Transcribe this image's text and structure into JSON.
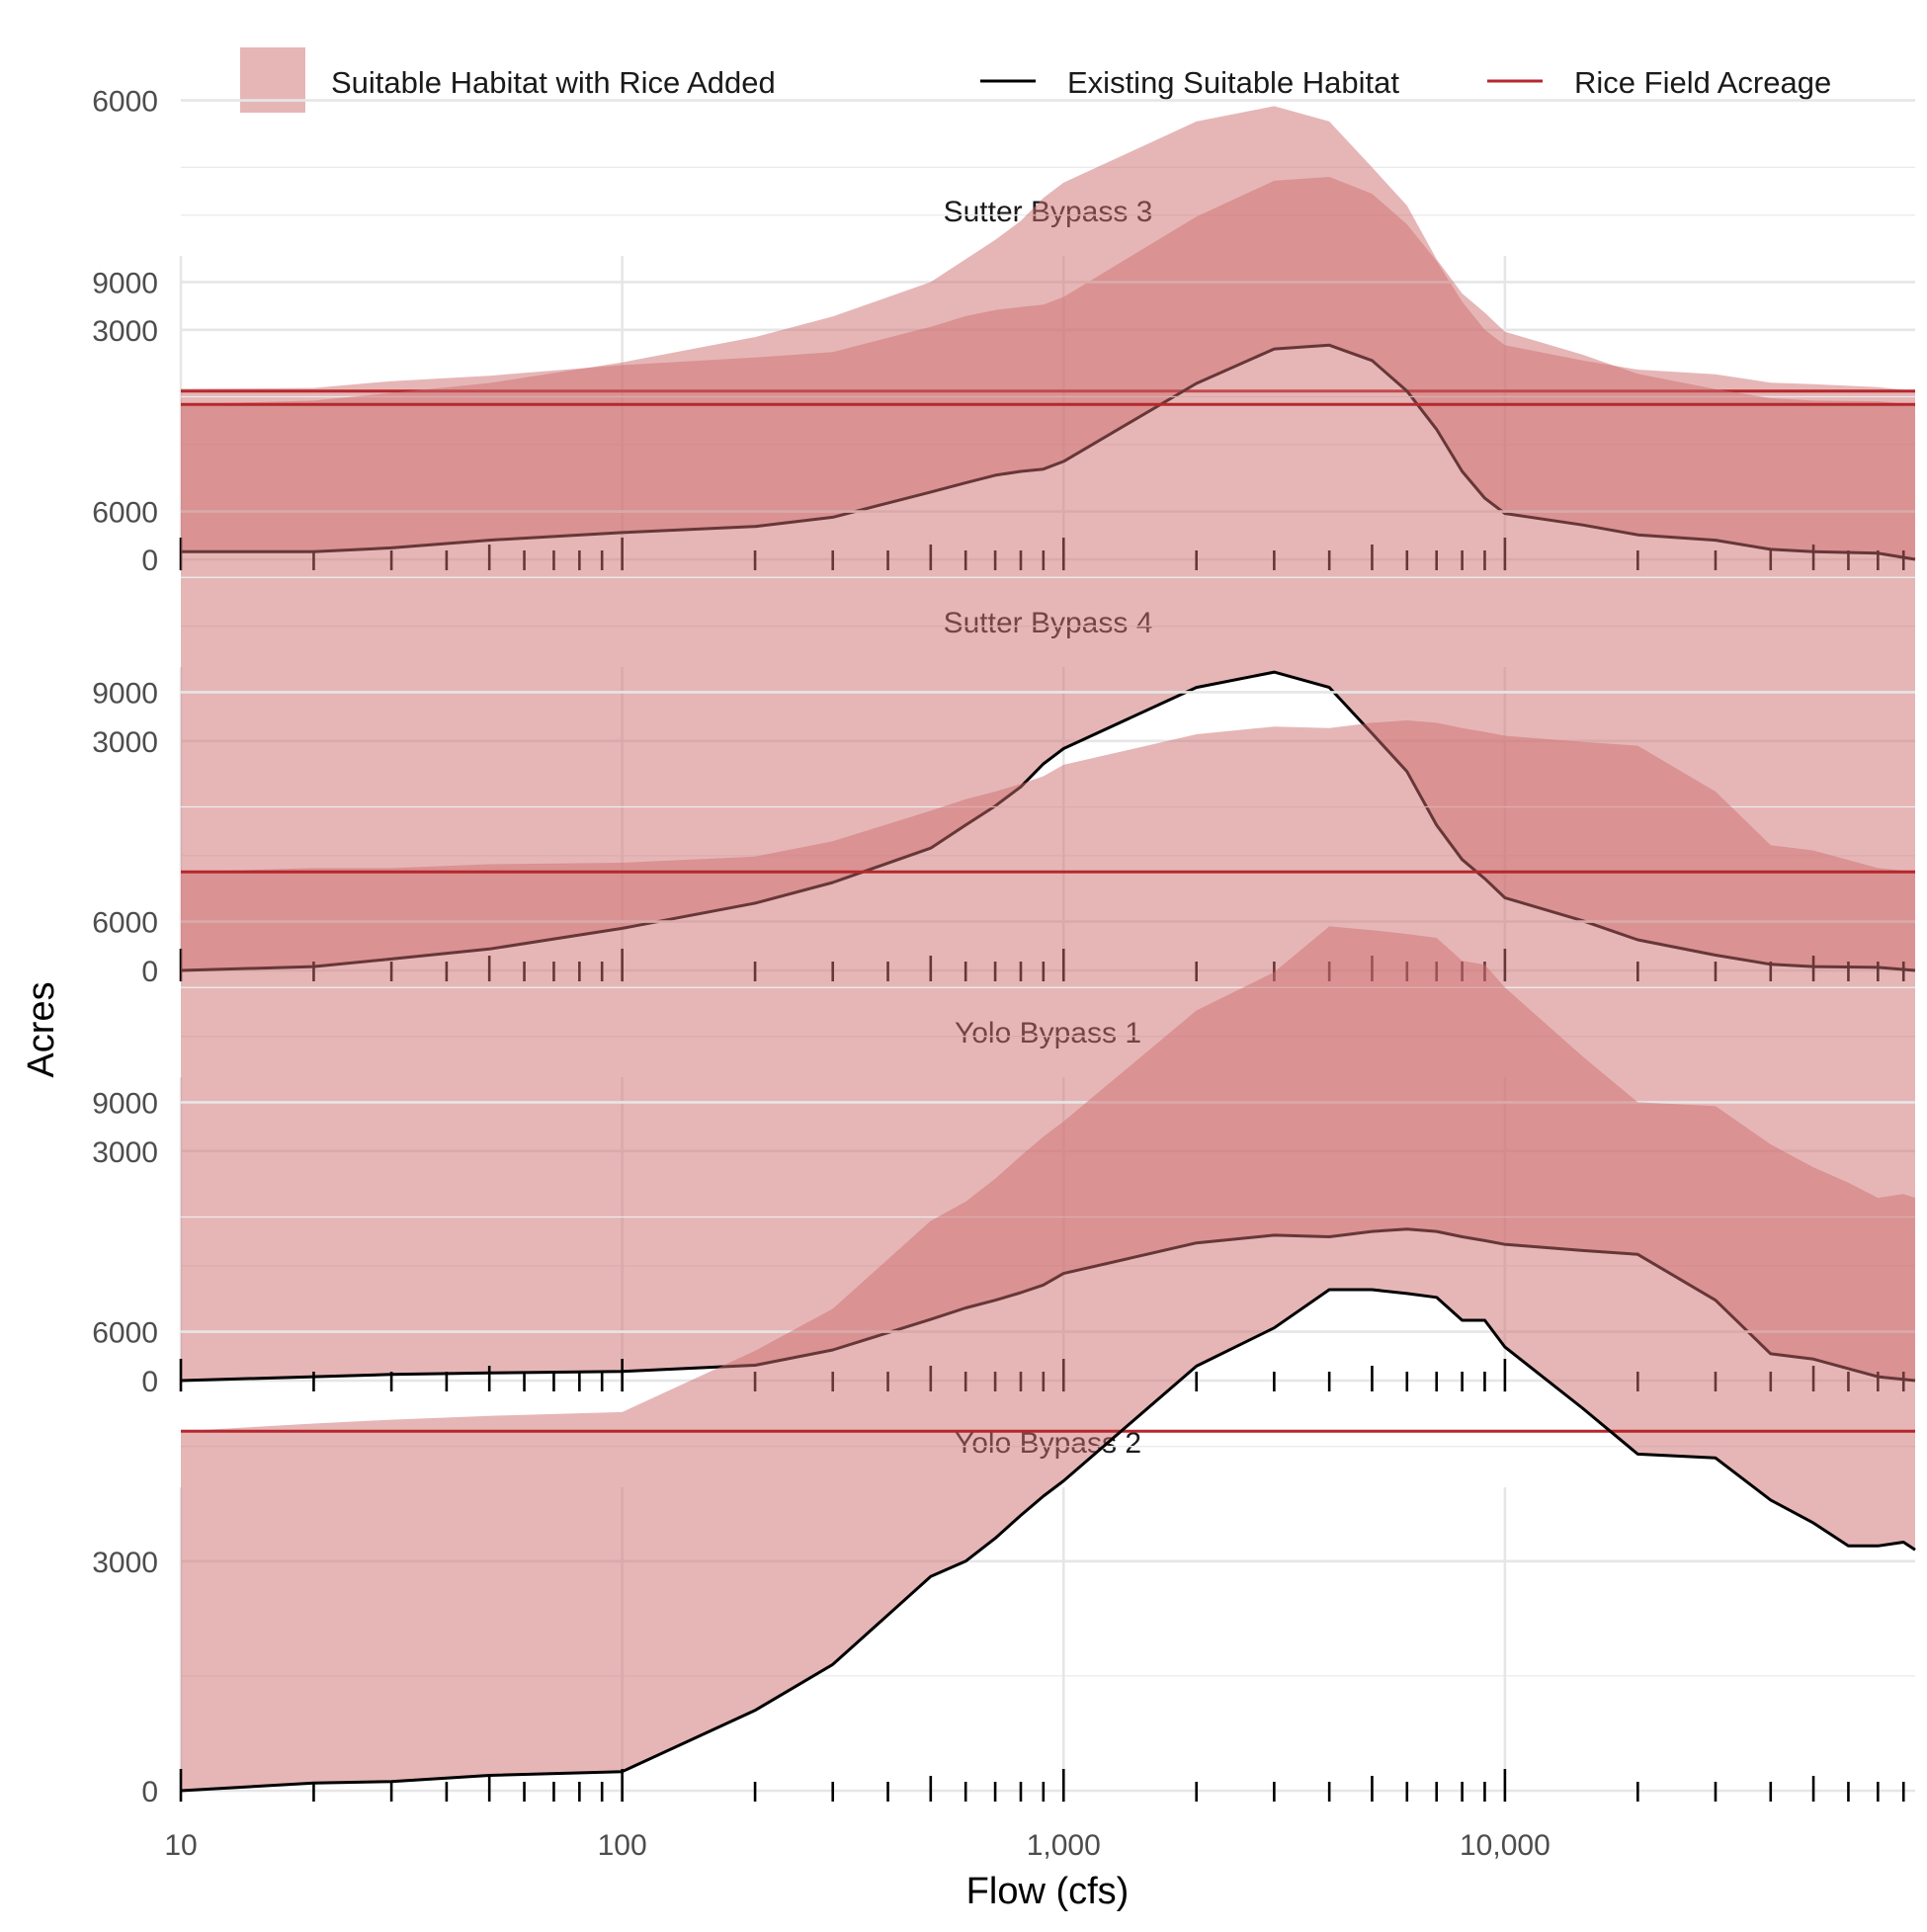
{
  "legend": {
    "items": [
      {
        "label": "Suitable Habitat with Rice Added",
        "kind": "area",
        "color": "#cd6e70"
      },
      {
        "label": "Existing Suitable Habitat",
        "kind": "line",
        "color": "#000000"
      },
      {
        "label": "Rice Field Acreage",
        "kind": "line",
        "color": "#b5282d"
      }
    ]
  },
  "axes": {
    "xlabel": "Flow (cfs)",
    "ylabel": "Acres"
  },
  "chart_data": {
    "type": "area",
    "x_scale": "log10",
    "xlim": [
      10,
      85000
    ],
    "ylim": [
      0,
      11500
    ],
    "x_ticks": [
      10,
      100,
      1000,
      10000
    ],
    "x_tick_labels": [
      "10",
      "100",
      "1,000",
      "10,000"
    ],
    "y_ticks": [
      0,
      3000,
      6000,
      9000
    ],
    "y_tick_labels": [
      "0",
      "3000",
      "6000",
      "9000"
    ],
    "colors": {
      "area": "#cd6e70",
      "line": "#000000",
      "rice": "#b5282d"
    },
    "panels": [
      {
        "title": "Sutter Bypass 3",
        "rice_acreage": 2200,
        "existing": [
          [
            10,
            100
          ],
          [
            20,
            100
          ],
          [
            30,
            150
          ],
          [
            50,
            250
          ],
          [
            100,
            350
          ],
          [
            200,
            430
          ],
          [
            300,
            550
          ],
          [
            500,
            880
          ],
          [
            600,
            1000
          ],
          [
            700,
            1100
          ],
          [
            800,
            1150
          ],
          [
            900,
            1180
          ],
          [
            1000,
            1280
          ],
          [
            2000,
            2300
          ],
          [
            3000,
            2750
          ],
          [
            4000,
            2800
          ],
          [
            5000,
            2600
          ],
          [
            6000,
            2200
          ],
          [
            7000,
            1700
          ],
          [
            8000,
            1150
          ],
          [
            9000,
            800
          ],
          [
            10000,
            600
          ],
          [
            15000,
            450
          ],
          [
            20000,
            320
          ],
          [
            30000,
            250
          ],
          [
            40000,
            130
          ],
          [
            50000,
            100
          ],
          [
            70000,
            80
          ],
          [
            85000,
            0
          ]
        ],
        "with_rice": [
          [
            10,
            2230
          ],
          [
            20,
            2240
          ],
          [
            30,
            2330
          ],
          [
            50,
            2400
          ],
          [
            100,
            2540
          ],
          [
            200,
            2640
          ],
          [
            300,
            2710
          ],
          [
            500,
            3040
          ],
          [
            600,
            3180
          ],
          [
            700,
            3260
          ],
          [
            800,
            3300
          ],
          [
            900,
            3330
          ],
          [
            1000,
            3430
          ],
          [
            2000,
            4480
          ],
          [
            3000,
            4950
          ],
          [
            4000,
            5000
          ],
          [
            5000,
            4780
          ],
          [
            6000,
            4380
          ],
          [
            7000,
            3900
          ],
          [
            8000,
            3370
          ],
          [
            9000,
            3000
          ],
          [
            10000,
            2800
          ],
          [
            15000,
            2600
          ],
          [
            20000,
            2480
          ],
          [
            30000,
            2420
          ],
          [
            40000,
            2310
          ],
          [
            50000,
            2290
          ],
          [
            70000,
            2250
          ],
          [
            85000,
            2200
          ]
        ]
      },
      {
        "title": "Sutter Bypass 4",
        "rice_acreage": 7400,
        "existing": [
          [
            10,
            0
          ],
          [
            20,
            50
          ],
          [
            30,
            150
          ],
          [
            50,
            280
          ],
          [
            100,
            550
          ],
          [
            200,
            880
          ],
          [
            300,
            1150
          ],
          [
            500,
            1600
          ],
          [
            600,
            1900
          ],
          [
            700,
            2150
          ],
          [
            800,
            2400
          ],
          [
            900,
            2700
          ],
          [
            1000,
            2900
          ],
          [
            2000,
            3700
          ],
          [
            3000,
            3900
          ],
          [
            4000,
            3700
          ],
          [
            5000,
            3100
          ],
          [
            6000,
            2600
          ],
          [
            7000,
            1900
          ],
          [
            8000,
            1450
          ],
          [
            9000,
            1200
          ],
          [
            10000,
            950
          ],
          [
            15000,
            650
          ],
          [
            20000,
            400
          ],
          [
            30000,
            200
          ],
          [
            40000,
            80
          ],
          [
            50000,
            50
          ],
          [
            70000,
            40
          ],
          [
            85000,
            0
          ]
        ],
        "with_rice": [
          [
            10,
            7400
          ],
          [
            20,
            7450
          ],
          [
            30,
            7550
          ],
          [
            50,
            7680
          ],
          [
            100,
            7950
          ],
          [
            200,
            8280
          ],
          [
            300,
            8550
          ],
          [
            500,
            9000
          ],
          [
            600,
            9300
          ],
          [
            700,
            9550
          ],
          [
            800,
            9800
          ],
          [
            900,
            10100
          ],
          [
            1000,
            10300
          ],
          [
            2000,
            11100
          ],
          [
            3000,
            11300
          ],
          [
            4000,
            11100
          ],
          [
            5000,
            10500
          ],
          [
            6000,
            10000
          ],
          [
            7000,
            9300
          ],
          [
            8000,
            8850
          ],
          [
            9000,
            8600
          ],
          [
            10000,
            8350
          ],
          [
            15000,
            8050
          ],
          [
            20000,
            7800
          ],
          [
            30000,
            7600
          ],
          [
            40000,
            7480
          ],
          [
            50000,
            7450
          ],
          [
            70000,
            7440
          ],
          [
            85000,
            7400
          ]
        ]
      },
      {
        "title": "Yolo Bypass 1",
        "rice_acreage": 6650,
        "existing": [
          [
            10,
            0
          ],
          [
            20,
            50
          ],
          [
            30,
            80
          ],
          [
            50,
            100
          ],
          [
            100,
            120
          ],
          [
            200,
            200
          ],
          [
            300,
            400
          ],
          [
            500,
            800
          ],
          [
            600,
            950
          ],
          [
            700,
            1050
          ],
          [
            800,
            1150
          ],
          [
            900,
            1250
          ],
          [
            1000,
            1400
          ],
          [
            2000,
            1800
          ],
          [
            3000,
            1900
          ],
          [
            4000,
            1880
          ],
          [
            5000,
            1950
          ],
          [
            6000,
            1980
          ],
          [
            7000,
            1950
          ],
          [
            8000,
            1880
          ],
          [
            9000,
            1830
          ],
          [
            10000,
            1780
          ],
          [
            15000,
            1700
          ],
          [
            20000,
            1650
          ],
          [
            30000,
            1050
          ],
          [
            40000,
            350
          ],
          [
            50000,
            280
          ],
          [
            70000,
            50
          ],
          [
            85000,
            0
          ]
        ],
        "with_rice": [
          [
            10,
            6650
          ],
          [
            20,
            6700
          ],
          [
            30,
            6700
          ],
          [
            50,
            6750
          ],
          [
            100,
            6770
          ],
          [
            200,
            6850
          ],
          [
            300,
            7050
          ],
          [
            500,
            7450
          ],
          [
            600,
            7600
          ],
          [
            700,
            7700
          ],
          [
            800,
            7800
          ],
          [
            900,
            7900
          ],
          [
            1000,
            8050
          ],
          [
            2000,
            8450
          ],
          [
            3000,
            8550
          ],
          [
            4000,
            8530
          ],
          [
            5000,
            8600
          ],
          [
            6000,
            8630
          ],
          [
            7000,
            8600
          ],
          [
            8000,
            8530
          ],
          [
            9000,
            8480
          ],
          [
            10000,
            8430
          ],
          [
            15000,
            8350
          ],
          [
            20000,
            8300
          ],
          [
            30000,
            7700
          ],
          [
            40000,
            7000
          ],
          [
            50000,
            6930
          ],
          [
            70000,
            6700
          ],
          [
            85000,
            6650
          ]
        ]
      },
      {
        "title": "Yolo Bypass 2",
        "rice_acreage": 4700,
        "existing": [
          [
            10,
            0
          ],
          [
            20,
            100
          ],
          [
            30,
            120
          ],
          [
            50,
            200
          ],
          [
            100,
            250
          ],
          [
            200,
            1050
          ],
          [
            300,
            1650
          ],
          [
            500,
            2800
          ],
          [
            600,
            3000
          ],
          [
            700,
            3300
          ],
          [
            800,
            3600
          ],
          [
            900,
            3850
          ],
          [
            1000,
            4050
          ],
          [
            2000,
            5550
          ],
          [
            3000,
            6050
          ],
          [
            4000,
            6550
          ],
          [
            5000,
            6550
          ],
          [
            6000,
            6500
          ],
          [
            7000,
            6450
          ],
          [
            8000,
            6150
          ],
          [
            9000,
            6150
          ],
          [
            10000,
            5800
          ],
          [
            15000,
            5000
          ],
          [
            20000,
            4400
          ],
          [
            30000,
            4350
          ],
          [
            40000,
            3800
          ],
          [
            50000,
            3500
          ],
          [
            60000,
            3200
          ],
          [
            70000,
            3200
          ],
          [
            80000,
            3250
          ],
          [
            85000,
            3150
          ]
        ],
        "with_rice": [
          [
            10,
            4700
          ],
          [
            20,
            4800
          ],
          [
            30,
            4850
          ],
          [
            50,
            4900
          ],
          [
            100,
            4950
          ],
          [
            200,
            5750
          ],
          [
            300,
            6300
          ],
          [
            500,
            7450
          ],
          [
            600,
            7700
          ],
          [
            700,
            8000
          ],
          [
            800,
            8300
          ],
          [
            900,
            8550
          ],
          [
            1000,
            8750
          ],
          [
            2000,
            10200
          ],
          [
            3000,
            10700
          ],
          [
            4000,
            11300
          ],
          [
            5000,
            11250
          ],
          [
            6000,
            11200
          ],
          [
            7000,
            11150
          ],
          [
            8000,
            10850
          ],
          [
            9000,
            10800
          ],
          [
            10000,
            10500
          ],
          [
            15000,
            9600
          ],
          [
            20000,
            9000
          ],
          [
            30000,
            8950
          ],
          [
            40000,
            8450
          ],
          [
            50000,
            8150
          ],
          [
            60000,
            7950
          ],
          [
            70000,
            7750
          ],
          [
            80000,
            7800
          ],
          [
            85000,
            7750
          ]
        ]
      }
    ]
  }
}
